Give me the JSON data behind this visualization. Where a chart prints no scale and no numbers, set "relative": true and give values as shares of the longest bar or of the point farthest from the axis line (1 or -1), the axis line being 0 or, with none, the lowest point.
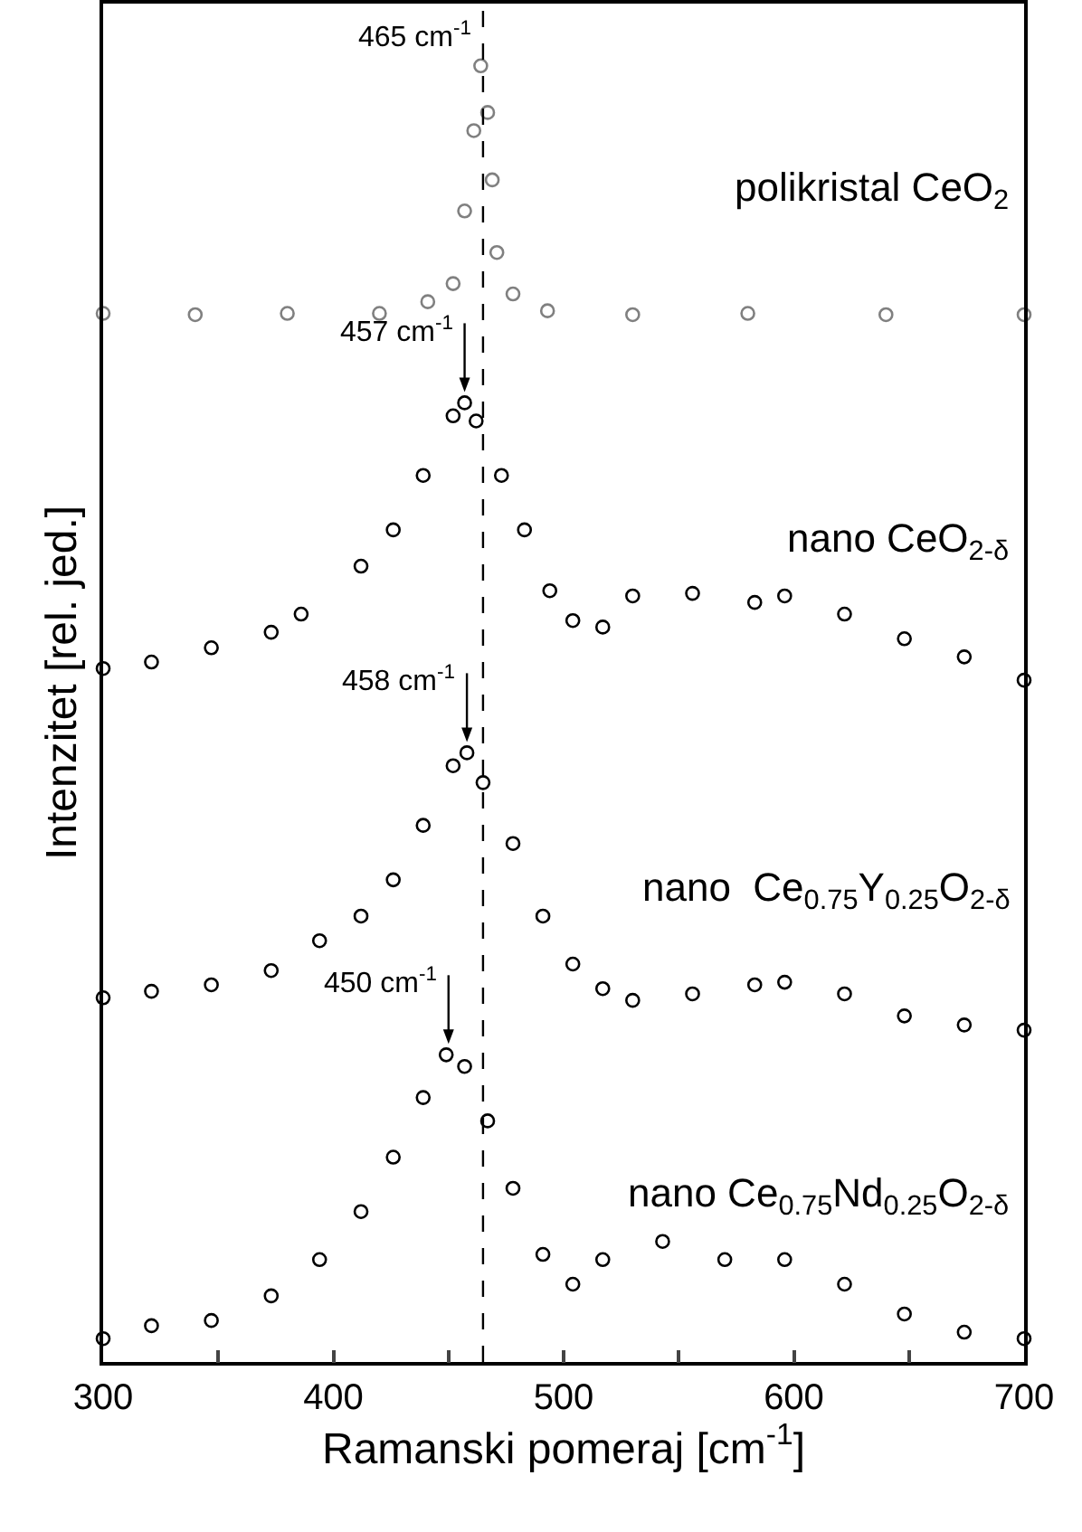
{
  "chart_data": {
    "type": "scatter",
    "xlabel": "Ramanski pomeraj [cm$^{-1}$]",
    "ylabel": "Intenzitet [rel. jed.]",
    "relative": true,
    "marker": "circle",
    "legend": false,
    "grid": false,
    "tick_labels": "x",
    "xlim": [
      300,
      700
    ],
    "xticks": [
      300,
      {
        "value": 350,
        "label": null
      },
      400,
      {
        "value": 450,
        "label": null
      },
      500,
      {
        "value": 550,
        "label": null
      },
      600,
      {
        "value": 650,
        "label": null
      },
      700
    ],
    "ref_lines": [
      {
        "axis": "x",
        "value": 465,
        "line_style": "dashed",
        "color": "#000000"
      }
    ],
    "annotations": [
      {
        "text": "465 cm$^{-1}$",
        "x": 465,
        "y": 1.0
      },
      {
        "text": "457 cm$^{-1}$",
        "x": 457,
        "y": 0.74
      },
      {
        "text": "458 cm$^{-1}$",
        "x": 458,
        "y": 0.47
      },
      {
        "text": "450 cm$^{-1}$",
        "x": 450,
        "y": 0.237
      }
    ],
    "series": [
      {
        "name": "polikristal CeO$_{2}$",
        "color": "#808080",
        "x": [
          300,
          340,
          380,
          420,
          441,
          452,
          457,
          461,
          464,
          467,
          469,
          471,
          478,
          493,
          530,
          580,
          640,
          700
        ],
        "values": [
          0.809,
          0.808,
          0.809,
          0.809,
          0.818,
          0.832,
          0.888,
          0.95,
          1.0,
          0.964,
          0.912,
          0.856,
          0.824,
          0.811,
          0.808,
          0.809,
          0.808,
          0.808
        ]
      },
      {
        "name": "nano CeO$_{2-δ}$",
        "color": "#000000",
        "x": [
          300,
          321,
          347,
          373,
          386,
          412,
          426,
          439,
          452,
          457,
          462,
          473,
          483,
          494,
          504,
          517,
          530,
          556,
          583,
          596,
          622,
          648,
          674,
          700
        ],
        "values": [
          0.535,
          0.54,
          0.551,
          0.563,
          0.577,
          0.614,
          0.642,
          0.684,
          0.73,
          0.74,
          0.726,
          0.684,
          0.642,
          0.595,
          0.572,
          0.567,
          0.591,
          0.593,
          0.586,
          0.591,
          0.577,
          0.558,
          0.544,
          0.526
        ]
      },
      {
        "name": "nano  Ce$_{0.75}$Y$_{0.25}$O$_{2-δ}$",
        "color": "#000000",
        "x": [
          300,
          321,
          347,
          373,
          394,
          412,
          426,
          439,
          452,
          458,
          465,
          478,
          491,
          504,
          517,
          530,
          556,
          583,
          596,
          622,
          648,
          674,
          700
        ],
        "values": [
          0.281,
          0.286,
          0.291,
          0.302,
          0.325,
          0.344,
          0.372,
          0.414,
          0.46,
          0.47,
          0.447,
          0.4,
          0.344,
          0.307,
          0.288,
          0.279,
          0.284,
          0.291,
          0.293,
          0.284,
          0.267,
          0.26,
          0.256
        ]
      },
      {
        "name": "nano Ce$_{0.75}$Nd$_{0.25}$O$_{2-δ}$",
        "color": "#000000",
        "x": [
          300,
          321,
          347,
          373,
          394,
          412,
          426,
          439,
          449,
          457,
          467,
          478,
          491,
          504,
          517,
          543,
          570,
          596,
          622,
          648,
          674,
          700
        ],
        "values": [
          0.018,
          0.028,
          0.032,
          0.051,
          0.079,
          0.116,
          0.158,
          0.204,
          0.237,
          0.228,
          0.186,
          0.134,
          0.083,
          0.06,
          0.079,
          0.093,
          0.079,
          0.079,
          0.06,
          0.037,
          0.023,
          0.018
        ]
      }
    ]
  }
}
